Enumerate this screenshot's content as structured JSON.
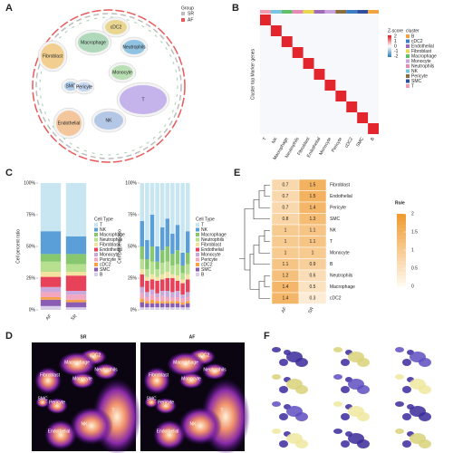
{
  "chart_data": [
    {
      "type": "umap",
      "panel": "A",
      "legend_title": "Group",
      "groups": [
        {
          "name": "SR",
          "color": "#bdbdbd"
        },
        {
          "name": "AF",
          "color": "#e8595a"
        }
      ],
      "clusters": [
        {
          "name": "cDC2",
          "color": "#e6cf78"
        },
        {
          "name": "Macrophage",
          "color": "#9fd2ae"
        },
        {
          "name": "Neutrophils",
          "color": "#78b6dc"
        },
        {
          "name": "Fibroblast",
          "color": "#f1c577"
        },
        {
          "name": "Monocyte",
          "color": "#acd9a4"
        },
        {
          "name": "SMC",
          "color": "#9fc6ea"
        },
        {
          "name": "Pericyte",
          "color": "#b6cdee"
        },
        {
          "name": "T",
          "color": "#b9a2ea"
        },
        {
          "name": "NK",
          "color": "#a4bce2"
        },
        {
          "name": "Endothelial",
          "color": "#f4ba85"
        }
      ]
    },
    {
      "type": "marker-heatmap",
      "panel": "B",
      "ylabel": "Cluster top Marker genes",
      "legend_title": "Z-score",
      "zticks": [
        2,
        1,
        0,
        -1,
        -2
      ],
      "cluster_title": "cluster",
      "categories": [
        "T",
        "NK",
        "Macrophage",
        "Neutrophils",
        "Fibroblast",
        "Endothelial",
        "Monocyte",
        "Pericyte",
        "cDC2",
        "SMC",
        "B"
      ],
      "clusters": [
        {
          "name": "B",
          "color": "#f1a340"
        },
        {
          "name": "cDC2",
          "color": "#3b7dc4"
        },
        {
          "name": "Endothelial",
          "color": "#9e6bb8"
        },
        {
          "name": "Fibroblast",
          "color": "#e7d84f"
        },
        {
          "name": "Macrophage",
          "color": "#5fbf6a"
        },
        {
          "name": "Monocyte",
          "color": "#c9a3dd"
        },
        {
          "name": "Neutrophils",
          "color": "#e48ab3"
        },
        {
          "name": "NK",
          "color": "#76c6df"
        },
        {
          "name": "Pericyte",
          "color": "#8c6d3f"
        },
        {
          "name": "SMC",
          "color": "#2f4f9e"
        },
        {
          "name": "T",
          "color": "#f29ab0"
        }
      ]
    },
    {
      "type": "stacked-bar",
      "panel": "C",
      "ylabel": "Cell percent ratio",
      "legend_title": "Cell Type",
      "ylim": [
        0,
        100
      ],
      "yticks": [
        {
          "value": 0,
          "label": "0%"
        },
        {
          "value": 25,
          "label": "25%"
        },
        {
          "value": 50,
          "label": "50%"
        },
        {
          "value": 75,
          "label": "75%"
        },
        {
          "value": 100,
          "label": "100%"
        }
      ],
      "categories": [
        "AF",
        "SR"
      ],
      "series": [
        {
          "name": "T",
          "color": "#c7e6f2",
          "values": [
            38,
            42
          ]
        },
        {
          "name": "NK",
          "color": "#5b9fd8",
          "values": [
            18,
            14
          ]
        },
        {
          "name": "Macrophage",
          "color": "#87c86f",
          "values": [
            6,
            8
          ]
        },
        {
          "name": "Neutrophils",
          "color": "#b6e08f",
          "values": [
            8,
            6
          ]
        },
        {
          "name": "Fibroblast",
          "color": "#f4e2a0",
          "values": [
            4,
            3
          ]
        },
        {
          "name": "Endothelial",
          "color": "#e8415a",
          "values": [
            8,
            12
          ]
        },
        {
          "name": "Monocyte",
          "color": "#c9a8dc",
          "values": [
            4,
            3
          ]
        },
        {
          "name": "Pericyte",
          "color": "#f3a6c0",
          "values": [
            4,
            4
          ]
        },
        {
          "name": "cDC2",
          "color": "#f6a24b",
          "values": [
            2,
            2
          ]
        },
        {
          "name": "SMC",
          "color": "#8a5cb3",
          "values": [
            5,
            4
          ]
        },
        {
          "name": "B",
          "color": "#d9cfe8",
          "values": [
            3,
            2
          ]
        }
      ]
    },
    {
      "type": "stacked-bar",
      "ylabel": "Cell percent ratio",
      "legend_title": "Cell Type",
      "ylim": [
        0,
        100
      ],
      "yticks": [
        {
          "value": 0,
          "label": "0%"
        },
        {
          "value": 25,
          "label": "25%"
        },
        {
          "value": 50,
          "label": "50%"
        },
        {
          "value": 75,
          "label": "75%"
        },
        {
          "value": 100,
          "label": "100%"
        }
      ],
      "categories": [
        null,
        null,
        null,
        null,
        null,
        null,
        null,
        null,
        null,
        null
      ],
      "series": [
        {
          "name": "T",
          "color": "#c7e6f2",
          "values": [
            30,
            45,
            25,
            50,
            35,
            28,
            40,
            33,
            55,
            38
          ]
        },
        {
          "name": "NK",
          "color": "#5b9fd8",
          "values": [
            20,
            15,
            25,
            12,
            18,
            22,
            16,
            20,
            10,
            17
          ]
        },
        {
          "name": "Macrophage",
          "color": "#87c86f",
          "values": [
            10,
            8,
            12,
            6,
            10,
            12,
            9,
            11,
            6,
            9
          ]
        },
        {
          "name": "Neutrophils",
          "color": "#b6e08f",
          "values": [
            8,
            6,
            10,
            6,
            9,
            8,
            7,
            9,
            5,
            8
          ]
        },
        {
          "name": "Fibroblast",
          "color": "#f4e2a0",
          "values": [
            4,
            3,
            4,
            3,
            4,
            5,
            3,
            4,
            3,
            4
          ]
        },
        {
          "name": "Endothelial",
          "color": "#e8415a",
          "values": [
            10,
            9,
            8,
            10,
            9,
            10,
            11,
            8,
            9,
            10
          ]
        },
        {
          "name": "Monocyte",
          "color": "#c9a8dc",
          "values": [
            5,
            4,
            4,
            3,
            4,
            5,
            4,
            5,
            3,
            4
          ]
        },
        {
          "name": "Pericyte",
          "color": "#f3a6c0",
          "values": [
            4,
            3,
            4,
            3,
            4,
            3,
            3,
            3,
            3,
            3
          ]
        },
        {
          "name": "cDC2",
          "color": "#f6a24b",
          "values": [
            3,
            2,
            3,
            2,
            2,
            2,
            2,
            2,
            2,
            2
          ]
        },
        {
          "name": "SMC",
          "color": "#8a5cb3",
          "values": [
            4,
            3,
            3,
            3,
            3,
            3,
            3,
            3,
            2,
            3
          ]
        },
        {
          "name": "B",
          "color": "#d9cfe8",
          "values": [
            2,
            2,
            2,
            2,
            2,
            2,
            2,
            2,
            2,
            2
          ]
        }
      ]
    },
    {
      "type": "heatmap",
      "panel": "E",
      "legend_title": "Ro/e",
      "zlim": [
        0,
        2
      ],
      "zticks": [
        2,
        1.5,
        1,
        0.5,
        0
      ],
      "colors": [
        "#fffaf2",
        "#ef9a2e"
      ],
      "columns": [
        "AF",
        "SR"
      ],
      "rows": [
        "Fibroblast",
        "Endothelial",
        "Pericyte",
        "SMC",
        "NK",
        "T",
        "Monocyte",
        "B",
        "Neutrophils",
        "Macrophage",
        "cDC2"
      ],
      "values": [
        [
          0.7,
          1.5
        ],
        [
          0.7,
          1.5
        ],
        [
          0.7,
          1.4
        ],
        [
          0.8,
          1.3
        ],
        [
          1.0,
          1.1
        ],
        [
          1.0,
          1.1
        ],
        [
          1.0,
          1.0
        ],
        [
          1.1,
          0.9
        ],
        [
          1.2,
          0.6
        ],
        [
          1.4,
          0.5
        ],
        [
          1.4,
          0.3
        ]
      ]
    },
    {
      "type": "density",
      "panel": "D",
      "facets": [
        "SR",
        "AF"
      ],
      "labels": [
        "cDC2",
        "Macrophage",
        "Neutrophils",
        "Fibroblast",
        "Monocyte",
        "SMC",
        "Pericyte",
        "T",
        "NK",
        "Endothelial"
      ]
    },
    {
      "type": "umap-grid",
      "panel": "F"
    }
  ]
}
